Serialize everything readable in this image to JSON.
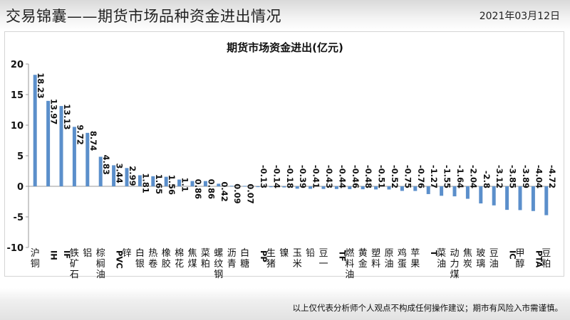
{
  "header": {
    "title": "交易锦囊——期货市场品种资金进出情况",
    "date": "2021年03月12日"
  },
  "footer": {
    "disclaimer": "以上仅代表分析师个人观点不构成任何操作建议；期市有风险入市需谨慎。"
  },
  "colors": {
    "bar": "#5b8fcb",
    "axis": "#999999",
    "text": "#111111"
  },
  "chart_data": {
    "type": "bar",
    "title": "期货市场资金进出(亿元)",
    "ylim": [
      -10,
      20
    ],
    "yticks": [
      -10,
      -5,
      0,
      5,
      10,
      15,
      20
    ],
    "grid": false,
    "legend": "none",
    "categories": [
      "沪铜",
      "IH",
      "IF",
      "铁矿石",
      "铝",
      "棕榈油",
      "PVC",
      "锌",
      "白银",
      "热卷",
      "橡胶",
      "棉花",
      "焦煤",
      "菜粕",
      "螺纹钢",
      "沥青",
      "白糖",
      "PP",
      "生猪",
      "镍",
      "玉米",
      "铅",
      "豆一",
      "TF",
      "燃料油",
      "黄金",
      "塑料",
      "原油",
      "鸡蛋",
      "苹果",
      "T",
      "菜油",
      "动力煤",
      "焦炭",
      "玻璃",
      "豆油",
      "IC",
      "甲醇",
      "PTA",
      "豆粕"
    ],
    "values": [
      18.23,
      13.97,
      13.13,
      9.72,
      8.74,
      4.83,
      3.44,
      2.99,
      1.81,
      1.65,
      1.56,
      1.1,
      0.86,
      0.86,
      0.42,
      0.09,
      0.07,
      -0.13,
      -0.14,
      -0.18,
      -0.39,
      -0.41,
      -0.43,
      -0.44,
      -0.46,
      -0.48,
      -0.51,
      -0.52,
      -0.75,
      -0.76,
      -1.27,
      -1.55,
      -1.64,
      -2.04,
      -2.8,
      -3.12,
      -3.85,
      -3.89,
      -4.04,
      -4.72
    ],
    "value_labels": [
      "18.23",
      "13.97",
      "13.13",
      "9.72",
      "8.74",
      "4.83",
      "3.44",
      "2.99",
      "1.81",
      "1.65",
      "1.56",
      "1.1",
      "0.86",
      "0.86",
      "0.42",
      "0.09",
      "0.07",
      "-0.13",
      "-0.14",
      "-0.18",
      "-0.39",
      "-0.41",
      "-0.43",
      "-0.44",
      "-0.46",
      "-0.48",
      "-0.51",
      "-0.52",
      "-0.75",
      "-0.76",
      "-1.27",
      "-1.55",
      "-1.64",
      "-2.04",
      "-2.8",
      "-3.12",
      "-3.85",
      "-3.89",
      "-4.04",
      "-4.72"
    ]
  }
}
